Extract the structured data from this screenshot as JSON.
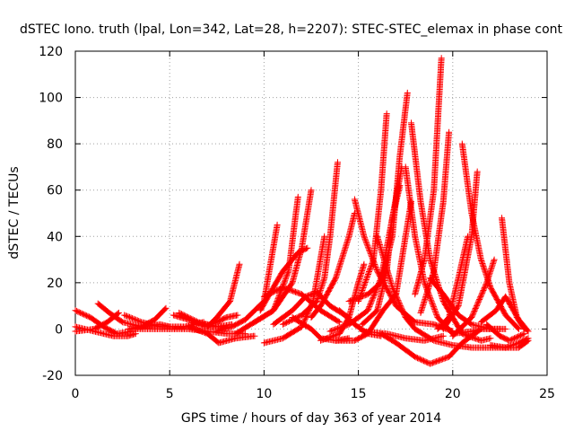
{
  "chart_data": {
    "type": "scatter",
    "title": "dSTEC Iono. truth (lpal, Lon=342, Lat=28, h=2207): STEC-STEC_elemax in phase cont",
    "xlabel": "GPS time / hours of day 363 of year 2014",
    "ylabel": "dSTEC  / TECUs",
    "xlim": [
      0,
      25
    ],
    "ylim": [
      -20,
      120
    ],
    "xticks": [
      0,
      5,
      10,
      15,
      20,
      25
    ],
    "yticks": [
      -20,
      0,
      20,
      40,
      60,
      80,
      100,
      120
    ],
    "grid": true,
    "marker": "+",
    "color": "#ff0000",
    "arcs": [
      [
        [
          0.0,
          8
        ],
        [
          0.8,
          5
        ],
        [
          1.5,
          1
        ],
        [
          2.2,
          -2
        ],
        [
          3.0,
          -1
        ]
      ],
      [
        [
          0.0,
          1
        ],
        [
          1.0,
          -1
        ],
        [
          2.0,
          -3
        ],
        [
          2.8,
          -3
        ],
        [
          3.2,
          -2
        ]
      ],
      [
        [
          0.0,
          -1
        ],
        [
          1.0,
          0
        ],
        [
          1.7,
          3
        ],
        [
          2.3,
          7
        ]
      ],
      [
        [
          1.2,
          11
        ],
        [
          1.8,
          7
        ],
        [
          2.5,
          3
        ],
        [
          3.5,
          1
        ],
        [
          4.5,
          2
        ],
        [
          5.0,
          1
        ]
      ],
      [
        [
          2.6,
          6
        ],
        [
          3.5,
          3
        ],
        [
          4.5,
          1
        ],
        [
          5.8,
          1
        ],
        [
          6.8,
          3
        ]
      ],
      [
        [
          2.8,
          0
        ],
        [
          3.5,
          1
        ],
        [
          4.2,
          4
        ],
        [
          4.8,
          9
        ]
      ],
      [
        [
          5.2,
          6
        ],
        [
          6.0,
          4
        ],
        [
          7.0,
          1
        ],
        [
          7.8,
          1
        ]
      ],
      [
        [
          5.5,
          7
        ],
        [
          6.5,
          3
        ],
        [
          7.5,
          1
        ],
        [
          8.3,
          2
        ]
      ],
      [
        [
          3.0,
          0
        ],
        [
          4.5,
          0
        ],
        [
          6.0,
          0
        ],
        [
          7.0,
          -1
        ],
        [
          8.0,
          -2
        ],
        [
          9.0,
          -2
        ]
      ],
      [
        [
          6.0,
          1
        ],
        [
          7.0,
          -2
        ],
        [
          7.6,
          -6
        ],
        [
          8.5,
          -4
        ],
        [
          9.5,
          -3
        ]
      ],
      [
        [
          7.0,
          1
        ],
        [
          7.5,
          5
        ],
        [
          8.2,
          12
        ],
        [
          8.7,
          28
        ]
      ],
      [
        [
          6.8,
          1
        ],
        [
          7.5,
          3
        ],
        [
          8.0,
          5
        ],
        [
          8.6,
          6
        ]
      ],
      [
        [
          7.5,
          -1
        ],
        [
          8.3,
          1
        ],
        [
          9.0,
          4
        ],
        [
          10.0,
          12
        ],
        [
          10.7,
          45
        ]
      ],
      [
        [
          8.5,
          -2
        ],
        [
          9.5,
          3
        ],
        [
          10.5,
          8
        ],
        [
          11.3,
          25
        ],
        [
          11.8,
          57
        ]
      ],
      [
        [
          9.5,
          3
        ],
        [
          10.5,
          8
        ],
        [
          11.5,
          20
        ],
        [
          12.0,
          35
        ],
        [
          12.5,
          60
        ]
      ],
      [
        [
          10.0,
          -6
        ],
        [
          11.0,
          -4
        ],
        [
          12.0,
          1
        ],
        [
          12.6,
          12
        ],
        [
          13.2,
          40
        ]
      ],
      [
        [
          9.8,
          8
        ],
        [
          10.5,
          18
        ],
        [
          11.0,
          25
        ],
        [
          11.8,
          33
        ],
        [
          12.3,
          35
        ]
      ],
      [
        [
          10.0,
          14
        ],
        [
          11.0,
          18
        ],
        [
          12.0,
          15
        ],
        [
          13.0,
          8
        ],
        [
          14.0,
          3
        ]
      ],
      [
        [
          10.5,
          2
        ],
        [
          11.5,
          8
        ],
        [
          12.2,
          14
        ],
        [
          12.8,
          16
        ],
        [
          13.5,
          10
        ],
        [
          14.5,
          5
        ]
      ],
      [
        [
          11.0,
          2
        ],
        [
          12.0,
          6
        ],
        [
          12.8,
          12
        ],
        [
          13.2,
          22
        ],
        [
          13.5,
          40
        ],
        [
          13.9,
          72
        ]
      ],
      [
        [
          11.5,
          5
        ],
        [
          12.5,
          0
        ],
        [
          13.0,
          -4
        ],
        [
          13.8,
          -5
        ],
        [
          14.5,
          -4
        ]
      ],
      [
        [
          13.0,
          -5
        ],
        [
          14.0,
          -2
        ],
        [
          14.5,
          5
        ],
        [
          15.0,
          20
        ],
        [
          15.3,
          28
        ]
      ],
      [
        [
          12.5,
          5
        ],
        [
          13.0,
          10
        ],
        [
          13.8,
          22
        ],
        [
          14.5,
          40
        ],
        [
          14.8,
          50
        ]
      ],
      [
        [
          14.8,
          56
        ],
        [
          15.3,
          40
        ],
        [
          16.0,
          25
        ],
        [
          17.0,
          10
        ],
        [
          18.0,
          3
        ],
        [
          19.0,
          2
        ],
        [
          20.0,
          -1
        ]
      ],
      [
        [
          13.8,
          -5
        ],
        [
          14.8,
          -5
        ],
        [
          15.5,
          -2
        ],
        [
          16.3,
          8
        ],
        [
          17.0,
          15
        ],
        [
          17.8,
          55
        ]
      ],
      [
        [
          14.0,
          8
        ],
        [
          14.8,
          2
        ],
        [
          15.5,
          -2
        ],
        [
          16.2,
          -3
        ]
      ],
      [
        [
          13.5,
          -1
        ],
        [
          14.5,
          2
        ],
        [
          15.5,
          8
        ],
        [
          16.2,
          22
        ],
        [
          16.8,
          48
        ],
        [
          17.3,
          70
        ]
      ],
      [
        [
          14.5,
          12
        ],
        [
          15.5,
          15
        ],
        [
          16.2,
          20
        ],
        [
          16.8,
          40
        ],
        [
          17.2,
          75
        ],
        [
          17.6,
          102
        ]
      ],
      [
        [
          15.2,
          2
        ],
        [
          16.0,
          8
        ],
        [
          16.5,
          25
        ],
        [
          16.8,
          48
        ],
        [
          17.2,
          62
        ]
      ],
      [
        [
          15.0,
          12
        ],
        [
          15.8,
          30
        ],
        [
          16.2,
          60
        ],
        [
          16.5,
          93
        ]
      ],
      [
        [
          16.0,
          40
        ],
        [
          16.8,
          18
        ],
        [
          17.5,
          5
        ],
        [
          18.0,
          0
        ],
        [
          19.0,
          -5
        ],
        [
          20.0,
          -7
        ],
        [
          21.0,
          -8
        ],
        [
          22.5,
          -8
        ],
        [
          23.5,
          -8
        ],
        [
          24.0,
          -5
        ]
      ],
      [
        [
          16.2,
          -2
        ],
        [
          17.0,
          -6
        ],
        [
          18.0,
          -12
        ],
        [
          18.8,
          -15
        ],
        [
          19.8,
          -12
        ],
        [
          20.5,
          -6
        ],
        [
          21.5,
          0
        ],
        [
          22.5,
          0
        ]
      ],
      [
        [
          15.2,
          -1
        ],
        [
          16.5,
          -2
        ],
        [
          17.5,
          -4
        ],
        [
          18.5,
          -5
        ],
        [
          19.5,
          -3
        ]
      ],
      [
        [
          17.5,
          70
        ],
        [
          18.0,
          40
        ],
        [
          18.5,
          20
        ],
        [
          19.2,
          5
        ],
        [
          20.0,
          -2
        ],
        [
          21.0,
          -1
        ],
        [
          21.5,
          0
        ]
      ],
      [
        [
          17.8,
          89
        ],
        [
          18.3,
          55
        ],
        [
          18.8,
          30
        ],
        [
          19.5,
          12
        ],
        [
          20.5,
          -2
        ],
        [
          21.5,
          -5
        ],
        [
          22.0,
          -4
        ]
      ],
      [
        [
          18.0,
          15
        ],
        [
          18.5,
          30
        ],
        [
          19.0,
          60
        ],
        [
          19.4,
          117
        ]
      ],
      [
        [
          18.3,
          7
        ],
        [
          19.0,
          25
        ],
        [
          19.5,
          55
        ],
        [
          19.8,
          85
        ]
      ],
      [
        [
          18.8,
          22
        ],
        [
          19.5,
          15
        ],
        [
          20.3,
          6
        ],
        [
          21.0,
          2
        ],
        [
          22.0,
          0
        ],
        [
          22.8,
          0
        ]
      ],
      [
        [
          19.2,
          0
        ],
        [
          19.8,
          5
        ],
        [
          20.3,
          22
        ],
        [
          20.8,
          40
        ]
      ],
      [
        [
          19.5,
          0
        ],
        [
          20.3,
          10
        ],
        [
          21.0,
          40
        ],
        [
          21.3,
          68
        ]
      ],
      [
        [
          20.5,
          80
        ],
        [
          21.0,
          50
        ],
        [
          21.5,
          30
        ],
        [
          22.0,
          18
        ],
        [
          22.8,
          6
        ],
        [
          23.5,
          0
        ]
      ],
      [
        [
          20.0,
          -3
        ],
        [
          21.0,
          5
        ],
        [
          21.8,
          20
        ],
        [
          22.2,
          30
        ]
      ],
      [
        [
          22.6,
          48
        ],
        [
          23.0,
          20
        ],
        [
          23.4,
          5
        ],
        [
          23.8,
          0
        ]
      ],
      [
        [
          21.5,
          3
        ],
        [
          22.3,
          8
        ],
        [
          22.8,
          14
        ],
        [
          23.5,
          4
        ],
        [
          24.0,
          -1
        ]
      ],
      [
        [
          22.0,
          -7
        ],
        [
          22.8,
          -8
        ],
        [
          23.5,
          -6
        ],
        [
          24.0,
          -4
        ]
      ],
      [
        [
          21.8,
          2
        ],
        [
          22.5,
          -3
        ],
        [
          23.0,
          -5
        ],
        [
          23.8,
          -2
        ]
      ]
    ]
  }
}
